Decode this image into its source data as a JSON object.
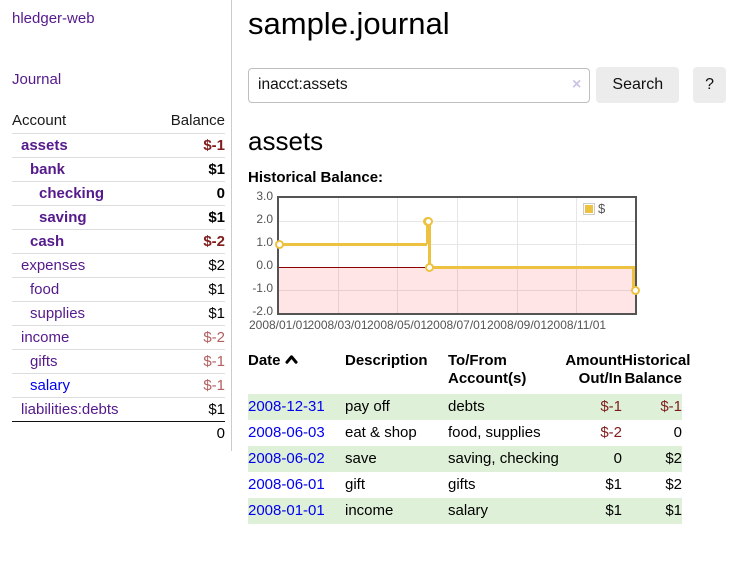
{
  "colors": {
    "link_purple": "#551a8b",
    "link_blue": "#0000ee",
    "negative_strong": "#7f1c1c",
    "negative_soft": "#b25f5f",
    "row_stripe_green": "#dff0d8",
    "chart_line_gold": "#edc240",
    "chart_negative_fill": "rgba(255,0,0,0.10)",
    "chart_zero_line": "#8b0000",
    "chart_frame": "#545454",
    "button_bg": "#ececec"
  },
  "app": {
    "brand": "hledger-web",
    "nav": [
      {
        "label": "Journal"
      }
    ]
  },
  "sidebar": {
    "account_header": "Account",
    "balance_header": "Balance",
    "accounts": [
      {
        "name": "assets",
        "balance": "$-1",
        "level": 1,
        "bold": true,
        "neg": "strong"
      },
      {
        "name": "bank",
        "balance": "$1",
        "level": 2,
        "bold": true
      },
      {
        "name": "checking",
        "balance": "0",
        "level": 3,
        "bold": true
      },
      {
        "name": "saving",
        "balance": "$1",
        "level": 3,
        "bold": true
      },
      {
        "name": "cash",
        "balance": "$-2",
        "level": 2,
        "bold": true,
        "neg": "strong"
      },
      {
        "name": "expenses",
        "balance": "$2",
        "level": 1
      },
      {
        "name": "food",
        "balance": "$1",
        "level": 2
      },
      {
        "name": "supplies",
        "balance": "$1",
        "level": 2
      },
      {
        "name": "income",
        "balance": "$-2",
        "level": 1,
        "neg": "soft"
      },
      {
        "name": "gifts",
        "balance": "$-1",
        "level": 2,
        "neg": "soft"
      },
      {
        "name": "salary",
        "balance": "$-1",
        "level": 2,
        "neg": "soft",
        "blue": true
      },
      {
        "name": "liabilities:debts",
        "balance": "$1",
        "level": 1
      }
    ],
    "total": "0"
  },
  "main": {
    "title": "sample.journal",
    "search": {
      "value": "inacct:assets",
      "clear_icon": "×",
      "search_button": "Search",
      "help_button": "?"
    },
    "account_heading": "assets",
    "chart_label": "Historical Balance:"
  },
  "chart_data": {
    "type": "line",
    "step": true,
    "title": "Historical Balance",
    "legend": [
      {
        "label": "$",
        "color": "#edc240"
      }
    ],
    "x_start": "2008-01-01",
    "x_end": "2008-12-31",
    "points": [
      {
        "date": "2008-01-01",
        "value": 1
      },
      {
        "date": "2008-06-01",
        "value": 2
      },
      {
        "date": "2008-06-02",
        "value": 2
      },
      {
        "date": "2008-06-03",
        "value": 0
      },
      {
        "date": "2008-12-31",
        "value": -1
      }
    ],
    "ylim": [
      -2,
      3
    ],
    "yticks": [
      "3.0",
      "2.0",
      "1.0",
      "0.0",
      "-1.0",
      "-2.0"
    ],
    "xticks": [
      {
        "date": "2008-01-01",
        "label": "2008/01/01"
      },
      {
        "date": "2008-03-01",
        "label": "2008/03/01"
      },
      {
        "date": "2008-05-01",
        "label": "2008/05/01"
      },
      {
        "date": "2008-07-01",
        "label": "2008/07/01"
      },
      {
        "date": "2008-09-01",
        "label": "2008/09/01"
      },
      {
        "date": "2008-11-01",
        "label": "2008/11/01"
      }
    ],
    "grid": true,
    "legend_position": "top-right"
  },
  "register": {
    "columns": [
      {
        "label": "Date",
        "sorted_asc": true
      },
      {
        "label": "Description"
      },
      {
        "label": "To/From\nAccount(s)"
      },
      {
        "label": "Amount\nOut/In",
        "align": "right"
      },
      {
        "label": "Historical\nBalance",
        "align": "right"
      }
    ],
    "rows": [
      {
        "date": "2008-12-31",
        "description": "pay off",
        "accounts": "debts",
        "amount": "$-1",
        "amount_negative": true,
        "balance": "$-1",
        "balance_negative": true
      },
      {
        "date": "2008-06-03",
        "description": "eat & shop",
        "accounts": "food, supplies",
        "amount": "$-2",
        "amount_negative": true,
        "balance": "0",
        "balance_negative": false
      },
      {
        "date": "2008-06-02",
        "description": "save",
        "accounts": "saving, checking",
        "amount": "0",
        "amount_negative": false,
        "balance": "$2",
        "balance_negative": false
      },
      {
        "date": "2008-06-01",
        "description": "gift",
        "accounts": "gifts",
        "amount": "$1",
        "amount_negative": false,
        "balance": "$2",
        "balance_negative": false
      },
      {
        "date": "2008-01-01",
        "description": "income",
        "accounts": "salary",
        "amount": "$1",
        "amount_negative": false,
        "balance": "$1",
        "balance_negative": false
      }
    ]
  }
}
